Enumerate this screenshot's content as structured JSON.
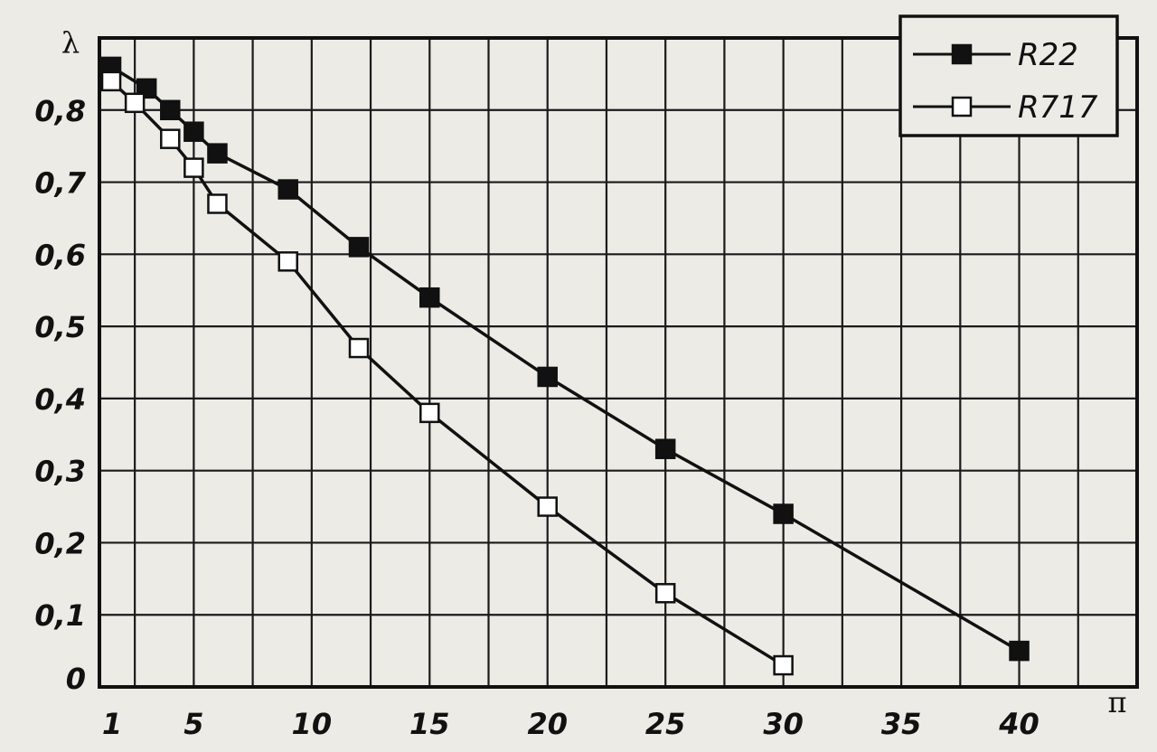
{
  "chart_data": {
    "type": "line",
    "title": "",
    "xlabel": "π",
    "ylabel": "λ",
    "xlim": [
      1,
      45
    ],
    "ylim": [
      0,
      0.9
    ],
    "x_ticks": [
      1,
      5,
      10,
      15,
      20,
      25,
      30,
      35,
      40
    ],
    "x_tick_labels": [
      "1",
      "5",
      "10",
      "15",
      "20",
      "25",
      "30",
      "35",
      "40"
    ],
    "y_ticks": [
      0,
      0.1,
      0.2,
      0.3,
      0.4,
      0.5,
      0.6,
      0.7,
      0.8
    ],
    "y_tick_labels": [
      "0",
      "0,1",
      "0,2",
      "0,3",
      "0,4",
      "0,5",
      "0,6",
      "0,7",
      "0,8"
    ],
    "grid": true,
    "legend_position": "top-right",
    "series": [
      {
        "name": "R22",
        "marker": "filled-square",
        "color": "#111111",
        "x": [
          1.5,
          3.0,
          4.0,
          5.0,
          6.0,
          9.0,
          12.0,
          15.0,
          20.0,
          25.0,
          30.0,
          40.0
        ],
        "y": [
          0.86,
          0.83,
          0.8,
          0.77,
          0.74,
          0.69,
          0.61,
          0.54,
          0.43,
          0.33,
          0.24,
          0.05
        ]
      },
      {
        "name": "R717",
        "marker": "open-square",
        "color": "#111111",
        "x": [
          1.5,
          2.5,
          4.0,
          5.0,
          6.0,
          9.0,
          12.0,
          15.0,
          20.0,
          25.0,
          30.0
        ],
        "y": [
          0.84,
          0.81,
          0.76,
          0.72,
          0.67,
          0.59,
          0.47,
          0.38,
          0.25,
          0.13,
          0.03
        ]
      }
    ]
  }
}
